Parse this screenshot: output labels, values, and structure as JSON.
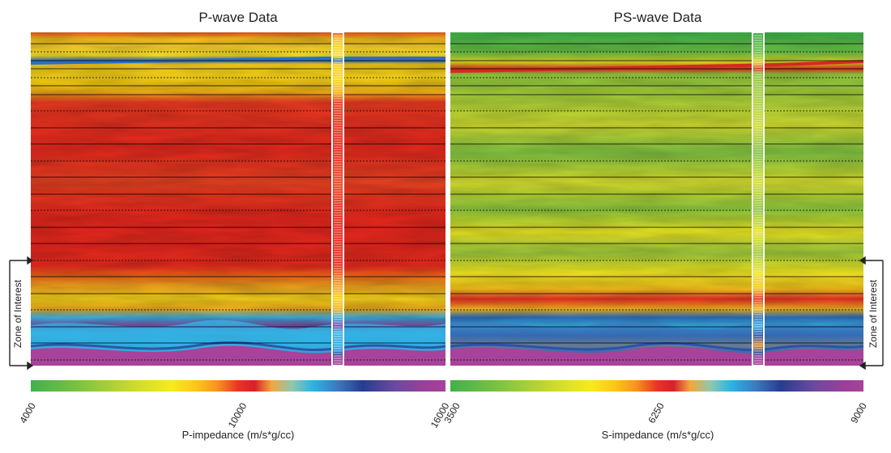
{
  "panels": [
    {
      "title": "P-wave Data",
      "colorbar_label": "P-impedance (m/s*g/cc)",
      "colorbar_ticks": [
        "4000",
        "10000",
        "16000"
      ],
      "zone_label": "Zone of Interest",
      "dominant_color": "#e8281e"
    },
    {
      "title": "PS-wave Data",
      "colorbar_label": "S-impedance (m/s*g/cc)",
      "colorbar_ticks": [
        "3500",
        "6250",
        "9000"
      ],
      "zone_label": "Zone of Interest",
      "dominant_color": "#8cc63e"
    }
  ],
  "colors": {
    "scale": [
      "#3fb24a",
      "#7fc242",
      "#c8d92e",
      "#f6ec1a",
      "#ffc516",
      "#f7931e",
      "#ee3224",
      "#d92029",
      "#f4a63a",
      "#2bb3e6",
      "#3c79bf",
      "#273c91",
      "#6b4aa0",
      "#9a3f99",
      "#a8429a"
    ],
    "well_line": "#ffffff",
    "horizon": "#000000"
  },
  "chart_data": [
    {
      "type": "heatmap",
      "title": "P-wave Data",
      "colorbar": {
        "label": "P-impedance (m/s*g/cc)",
        "min": 4000,
        "mid": 10000,
        "max": 16000
      },
      "layers_top_to_bottom": [
        "yellow",
        "blue-streak",
        "yellow",
        "red",
        "yellow",
        "cyan",
        "purple"
      ],
      "annotation": "Zone of Interest"
    },
    {
      "type": "heatmap",
      "title": "PS-wave Data",
      "colorbar": {
        "label": "S-impedance (m/s*g/cc)",
        "min": 3500,
        "mid": 6250,
        "max": 9000
      },
      "layers_top_to_bottom": [
        "green",
        "red-streak",
        "green-yellow",
        "red",
        "cyan-blue",
        "purple"
      ],
      "annotation": "Zone of Interest"
    }
  ]
}
